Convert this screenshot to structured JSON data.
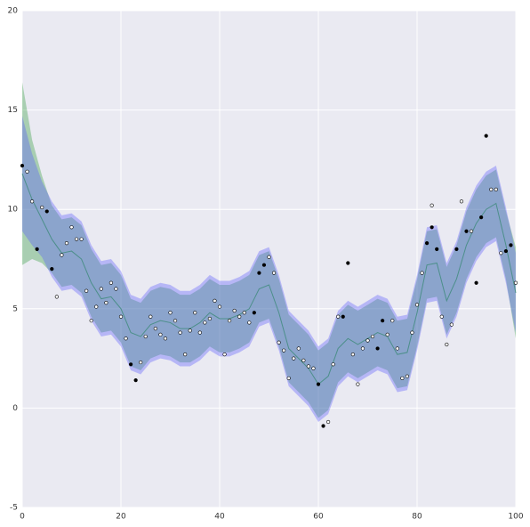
{
  "chart_data": {
    "type": "line",
    "xlim": [
      0,
      100
    ],
    "ylim": [
      -5,
      20
    ],
    "xticks": [
      0,
      20,
      40,
      60,
      80,
      100
    ],
    "yticks": [
      -5,
      0,
      5,
      10,
      15,
      20
    ],
    "grid": true,
    "background": "#eaeaf2",
    "x": [
      0,
      2,
      4,
      6,
      8,
      10,
      12,
      14,
      16,
      18,
      20,
      22,
      24,
      26,
      28,
      30,
      32,
      34,
      36,
      38,
      40,
      42,
      44,
      46,
      48,
      50,
      52,
      54,
      56,
      58,
      60,
      62,
      64,
      66,
      68,
      70,
      72,
      74,
      76,
      78,
      80,
      82,
      84,
      86,
      88,
      90,
      92,
      94,
      96,
      98,
      100
    ],
    "bands": [
      {
        "color": "#2e9a3a",
        "lower": [
          7.2,
          7.5,
          7.3,
          6.8,
          6.1,
          6.2,
          5.8,
          4.6,
          3.8,
          3.9,
          3.3,
          2.1,
          1.9,
          2.5,
          2.7,
          2.6,
          2.3,
          2.3,
          2.6,
          3.1,
          2.8,
          2.8,
          3.0,
          3.3,
          4.3,
          4.5,
          3.1,
          1.3,
          0.8,
          0.3,
          -0.5,
          -0.1,
          1.3,
          1.8,
          1.5,
          1.8,
          2.1,
          1.9,
          1.0,
          1.1,
          3.1,
          5.5,
          5.6,
          3.7,
          4.8,
          6.5,
          7.6,
          8.3,
          8.6,
          6.5,
          3.5
        ],
        "upper": [
          16.4,
          13.5,
          11.7,
          10.2,
          9.5,
          9.6,
          9.2,
          8.0,
          7.2,
          7.3,
          6.7,
          5.5,
          5.3,
          5.9,
          6.1,
          6.0,
          5.7,
          5.7,
          6.0,
          6.5,
          6.2,
          6.2,
          6.4,
          6.7,
          7.7,
          7.9,
          6.5,
          4.7,
          4.2,
          3.7,
          2.9,
          3.3,
          4.7,
          5.2,
          4.9,
          5.2,
          5.5,
          5.3,
          4.4,
          4.5,
          6.5,
          8.9,
          9.0,
          7.1,
          8.2,
          9.9,
          11.0,
          11.7,
          12.0,
          9.9,
          8.1
        ]
      },
      {
        "color": "#5555ff",
        "lower": [
          8.9,
          8.2,
          7.6,
          6.6,
          5.9,
          6.0,
          5.6,
          4.4,
          3.6,
          3.7,
          3.1,
          1.9,
          1.7,
          2.3,
          2.5,
          2.4,
          2.1,
          2.1,
          2.4,
          2.9,
          2.6,
          2.6,
          2.8,
          3.1,
          4.1,
          4.3,
          2.9,
          1.1,
          0.6,
          0.1,
          -0.7,
          -0.3,
          1.1,
          1.6,
          1.3,
          1.6,
          1.9,
          1.7,
          0.8,
          0.9,
          2.9,
          5.3,
          5.4,
          3.5,
          4.6,
          6.3,
          7.4,
          8.1,
          8.4,
          6.3,
          3.8
        ],
        "upper": [
          14.7,
          12.8,
          11.4,
          10.4,
          9.7,
          9.8,
          9.4,
          8.2,
          7.4,
          7.5,
          6.9,
          5.7,
          5.5,
          6.1,
          6.3,
          6.2,
          5.9,
          5.9,
          6.2,
          6.7,
          6.4,
          6.4,
          6.6,
          6.9,
          7.9,
          8.1,
          6.7,
          4.9,
          4.4,
          3.9,
          3.1,
          3.5,
          4.9,
          5.4,
          5.1,
          5.4,
          5.7,
          5.5,
          4.6,
          4.7,
          6.7,
          9.1,
          9.2,
          7.3,
          8.4,
          10.1,
          11.2,
          11.9,
          12.2,
          10.1,
          7.8
        ]
      }
    ],
    "series": [
      {
        "color": "#4c8f8a",
        "values": [
          11.8,
          10.5,
          9.5,
          8.5,
          7.8,
          7.9,
          7.5,
          6.3,
          5.5,
          5.6,
          5.0,
          3.8,
          3.6,
          4.2,
          4.4,
          4.3,
          4.0,
          4.0,
          4.3,
          4.8,
          4.5,
          4.5,
          4.7,
          5.0,
          6.0,
          6.2,
          4.8,
          3.0,
          2.5,
          2.0,
          1.2,
          1.6,
          3.0,
          3.5,
          3.2,
          3.5,
          3.8,
          3.6,
          2.7,
          2.8,
          4.8,
          7.2,
          7.3,
          5.4,
          6.5,
          8.2,
          9.3,
          10.0,
          10.3,
          8.2,
          5.8
        ]
      }
    ],
    "scatter": [
      {
        "color": "#000000",
        "x": [
          0,
          3,
          5,
          6,
          22,
          23,
          47,
          48,
          49,
          60,
          61,
          65,
          66,
          72,
          73,
          82,
          83,
          84,
          88,
          90,
          92,
          93,
          94,
          98,
          99
        ],
        "values": [
          12.2,
          8.0,
          9.9,
          7.0,
          2.2,
          1.4,
          4.8,
          6.8,
          7.2,
          1.2,
          -0.9,
          4.6,
          7.3,
          3.0,
          4.4,
          8.3,
          9.1,
          8.0,
          8.0,
          8.9,
          6.3,
          9.6,
          13.7,
          7.9,
          8.2
        ]
      },
      {
        "color": "#ffffff",
        "x": [
          1,
          2,
          4,
          7,
          8,
          9,
          10,
          11,
          12,
          13,
          14,
          15,
          16,
          17,
          18,
          19,
          20,
          21,
          24,
          25,
          26,
          27,
          28,
          29,
          30,
          31,
          32,
          33,
          34,
          35,
          36,
          37,
          38,
          39,
          40,
          41,
          42,
          43,
          44,
          45,
          46,
          50,
          51,
          52,
          53,
          54,
          55,
          56,
          57,
          58,
          59,
          62,
          63,
          64,
          67,
          68,
          69,
          70,
          71,
          74,
          75,
          76,
          77,
          78,
          79,
          80,
          81,
          83,
          85,
          86,
          87,
          89,
          91,
          95,
          96,
          97,
          100
        ],
        "values": [
          11.9,
          10.4,
          10.1,
          5.6,
          7.7,
          8.3,
          9.1,
          8.5,
          8.5,
          5.9,
          4.4,
          5.1,
          6.0,
          5.3,
          6.3,
          6.0,
          4.6,
          3.5,
          2.3,
          3.6,
          4.6,
          4.0,
          3.7,
          3.5,
          4.8,
          4.4,
          3.8,
          2.7,
          3.9,
          4.8,
          3.8,
          4.3,
          4.5,
          5.4,
          5.1,
          2.7,
          4.4,
          4.9,
          4.6,
          4.8,
          4.3,
          7.6,
          6.8,
          3.3,
          2.9,
          1.5,
          2.5,
          3.0,
          2.4,
          2.1,
          2.0,
          -0.7,
          2.2,
          4.6,
          2.7,
          1.2,
          3.0,
          3.4,
          3.6,
          3.7,
          4.4,
          3.0,
          1.5,
          1.6,
          3.8,
          5.2,
          6.8,
          10.2,
          4.6,
          3.2,
          4.2,
          10.4,
          8.9,
          11.0,
          11.0,
          7.8,
          6.3
        ]
      }
    ]
  }
}
